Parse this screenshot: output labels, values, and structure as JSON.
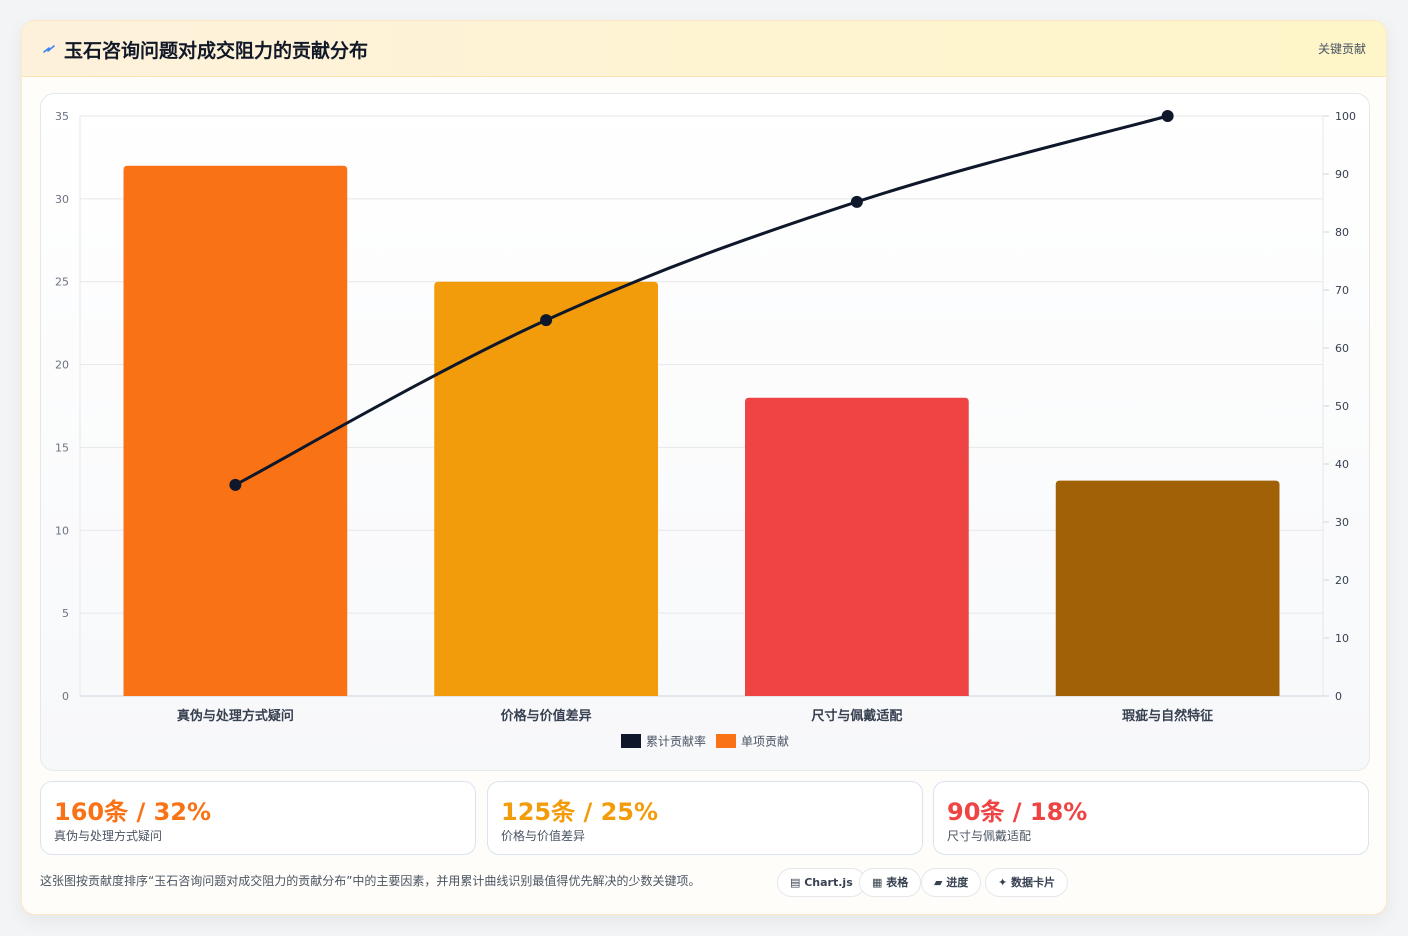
{
  "header": {
    "icon": "lightning-icon",
    "title": "玉石咨询问题对成交阻力的贡献分布",
    "tag": "关键贡献"
  },
  "chart_data": {
    "type": "bar",
    "categories": [
      "真伪与处理方式疑问",
      "价格与价值差异",
      "尺寸与佩戴适配",
      "瑕疵与自然特征"
    ],
    "series": [
      {
        "name": "单项贡献",
        "kind": "bar",
        "values": [
          32,
          25,
          18,
          13
        ],
        "colors": [
          "#f97316",
          "#f39c0b",
          "#ef4444",
          "#a16207"
        ]
      },
      {
        "name": "累计贡献率",
        "kind": "line",
        "axis": "right",
        "values": [
          36.4,
          64.8,
          85.2,
          100
        ],
        "color": "#0f172a"
      }
    ],
    "ylim": [
      0,
      35
    ],
    "y_ticks": [
      0,
      5,
      10,
      15,
      20,
      25,
      30,
      35
    ],
    "y2lim": [
      0,
      100
    ],
    "y2_ticks": [
      0,
      10,
      20,
      30,
      40,
      50,
      60,
      70,
      80,
      90,
      100
    ],
    "legend": {
      "placement": "bottom",
      "items": [
        {
          "label": "累计贡献率",
          "color": "#0f172a"
        },
        {
          "label": "单项贡献",
          "color": "#f97316"
        }
      ]
    },
    "grid": true
  },
  "stats": [
    {
      "value": "160条 / 32%",
      "label": "真伪与处理方式疑问",
      "color": "#f97316"
    },
    {
      "value": "125条 / 25%",
      "label": "价格与价值差异",
      "color": "#f39c0b"
    },
    {
      "value": "90条 / 18%",
      "label": "尺寸与佩戴适配",
      "color": "#ef4444"
    }
  ],
  "footer": {
    "text": "这张图按贡献度排序“玉石咨询问题对成交阻力的贡献分布”中的主要因素，并用累计曲线识别最值得优先解决的少数关键项。",
    "chips": [
      {
        "icon": "chart-icon",
        "glyph": "▤",
        "label": "Chart.js"
      },
      {
        "icon": "table-icon",
        "glyph": "▦",
        "label": "表格"
      },
      {
        "icon": "progress-icon",
        "glyph": "▰",
        "label": "进度"
      },
      {
        "icon": "data-card-icon",
        "glyph": "✦",
        "label": "数据卡片"
      }
    ]
  }
}
